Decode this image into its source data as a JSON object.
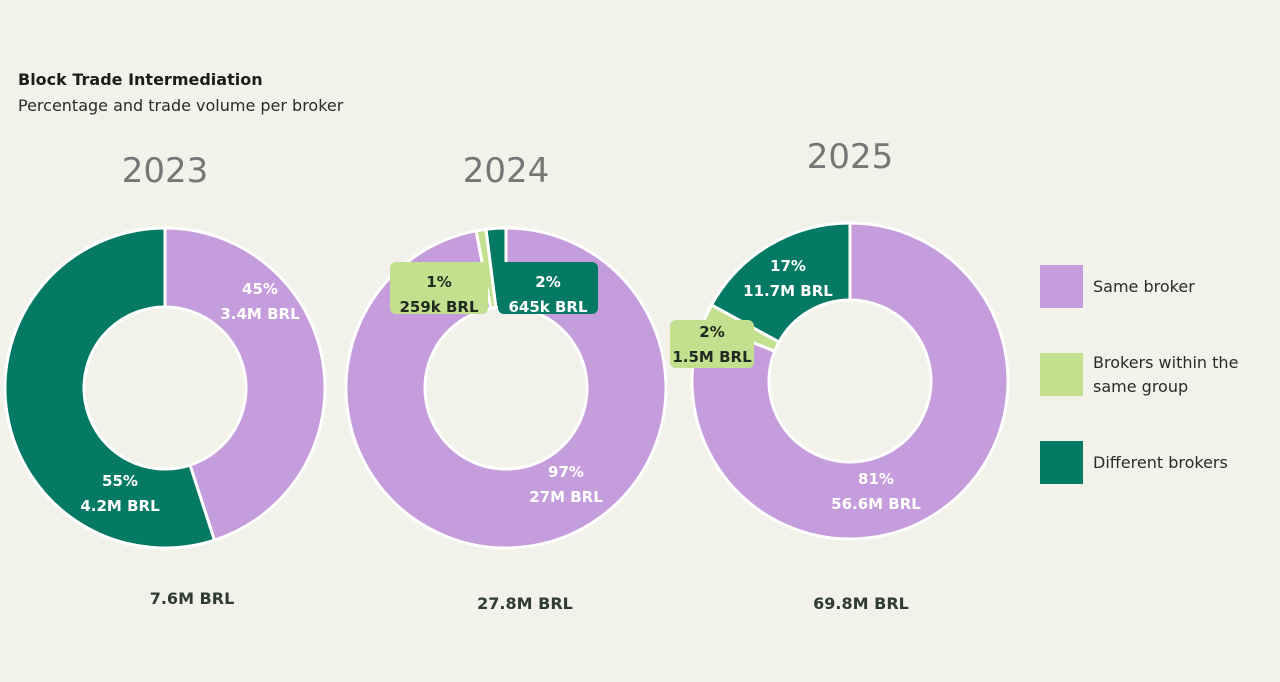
{
  "header": {
    "title": "Block Trade Intermediation",
    "subtitle": "Percentage and trade volume per broker"
  },
  "colors": {
    "same_broker": "#c59ddd",
    "brokers_same_group": "#c3e08e",
    "different_brokers": "#047a64"
  },
  "legend": {
    "placement": "right",
    "items": [
      {
        "key": "same_broker",
        "lines": [
          "Same broker"
        ]
      },
      {
        "key": "brokers_same_group",
        "lines": [
          "Brokers within the",
          "same group"
        ]
      },
      {
        "key": "different_brokers",
        "lines": [
          "Different brokers"
        ]
      }
    ]
  },
  "chart_data": [
    {
      "type": "pie",
      "title": "2023",
      "total_label": "7.6M BRL",
      "slices": [
        {
          "key": "same_broker",
          "percent": 45,
          "percent_label": "45%",
          "volume_label": "3.4M BRL"
        },
        {
          "key": "different_brokers",
          "percent": 55,
          "percent_label": "55%",
          "volume_label": "4.2M BRL"
        }
      ]
    },
    {
      "type": "pie",
      "title": "2024",
      "total_label": "27.8M BRL",
      "slices": [
        {
          "key": "same_broker",
          "percent": 97,
          "percent_label": "97%",
          "volume_label": "27M BRL"
        },
        {
          "key": "brokers_same_group",
          "percent": 1,
          "percent_label": "1%",
          "volume_label": "259k BRL"
        },
        {
          "key": "different_brokers",
          "percent": 2,
          "percent_label": "2%",
          "volume_label": "645k BRL"
        }
      ]
    },
    {
      "type": "pie",
      "title": "2025",
      "total_label": "69.8M BRL",
      "slices": [
        {
          "key": "same_broker",
          "percent": 81,
          "percent_label": "81%",
          "volume_label": "56.6M BRL"
        },
        {
          "key": "brokers_same_group",
          "percent": 2,
          "percent_label": "2%",
          "volume_label": "1.5M BRL"
        },
        {
          "key": "different_brokers",
          "percent": 17,
          "percent_label": "17%",
          "volume_label": "11.7M BRL"
        }
      ]
    }
  ]
}
